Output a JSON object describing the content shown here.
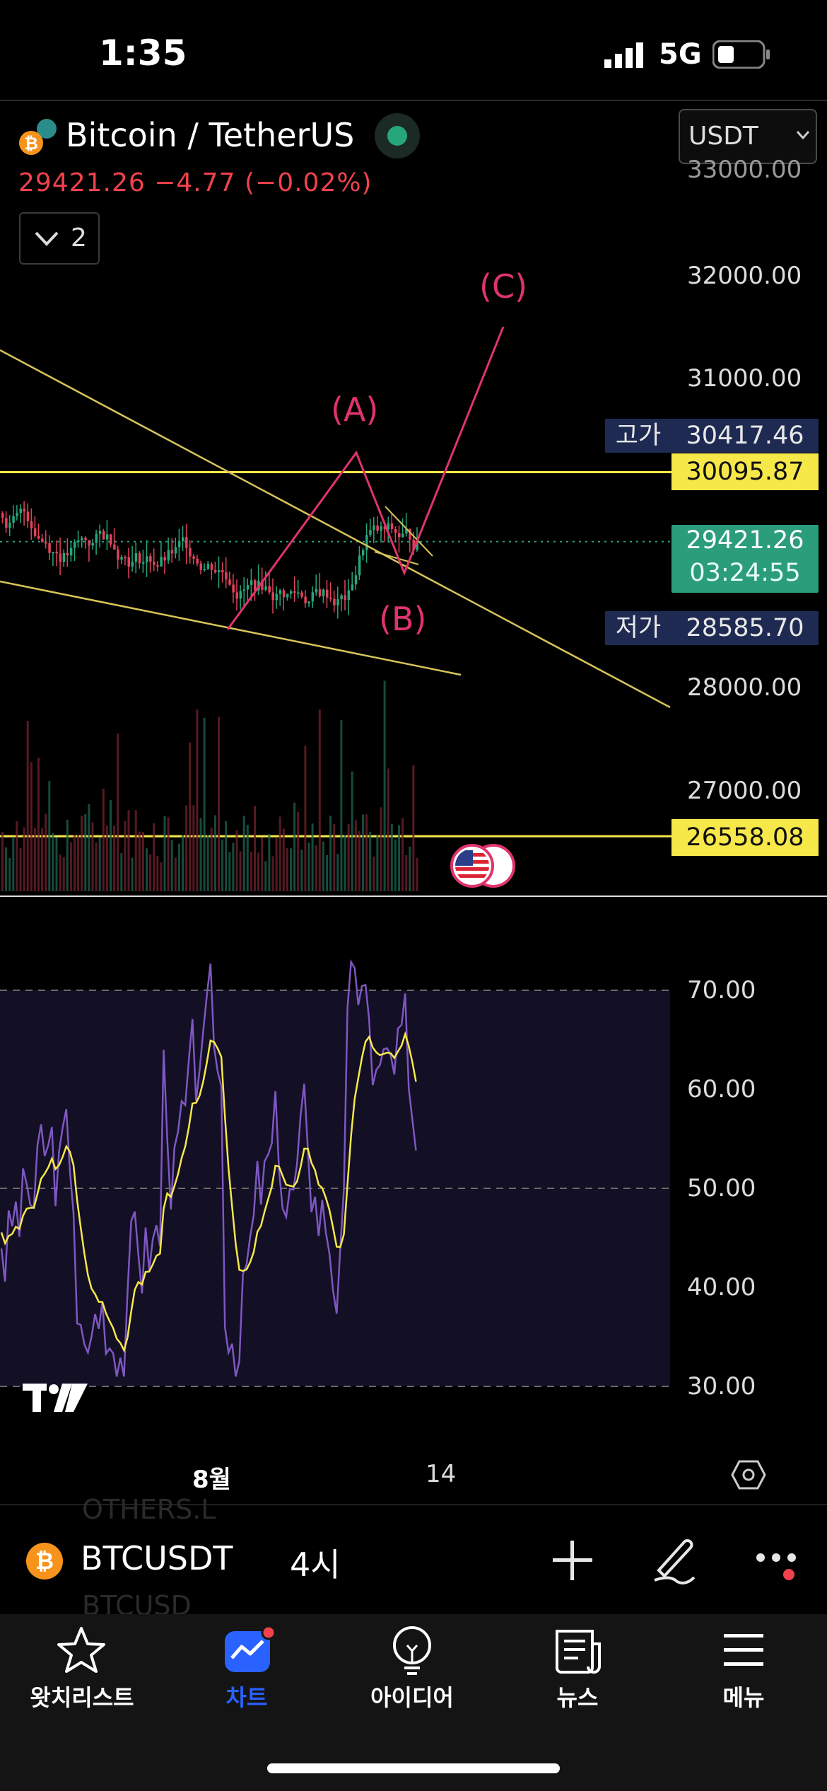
{
  "status_bar": {
    "time": "1:35",
    "network": "5G"
  },
  "header": {
    "symbol_name": "Bitcoin / TetherUS",
    "price_line": "29421.26  −4.77 (−0.02%)",
    "indicator_count": "2",
    "currency": "USDT"
  },
  "price_axis": {
    "labels": [
      "33000.00",
      "32000.00",
      "31000.00",
      "28000.00",
      "27000.00"
    ],
    "high_label": "고가",
    "high_value": "30417.46",
    "level_1": "30095.87",
    "current_price": "29421.26",
    "countdown": "03:24:55",
    "low_label": "저가",
    "low_value": "28585.70",
    "level_2": "26558.08"
  },
  "wave_labels": {
    "a": "(A)",
    "b": "(B)",
    "c": "(C)"
  },
  "rsi_axis": {
    "labels": [
      "70.00",
      "60.00",
      "50.00",
      "40.00",
      "30.00"
    ]
  },
  "time_axis": {
    "labels": [
      "8월",
      "14"
    ]
  },
  "toolbar": {
    "symbol": "BTCUSDT",
    "interval": "4시",
    "faded_top": "OTHERS.L",
    "faded_bottom": "BTCUSD"
  },
  "tabs": [
    {
      "label": "왓치리스트",
      "icon": "star-icon"
    },
    {
      "label": "차트",
      "icon": "chart-icon"
    },
    {
      "label": "아이디어",
      "icon": "lightbulb-icon"
    },
    {
      "label": "뉴스",
      "icon": "news-icon"
    },
    {
      "label": "메뉴",
      "icon": "menu-icon"
    }
  ],
  "colors": {
    "accent_blue": "#2962ff",
    "price_red": "#f0424c",
    "level_yellow": "#f7e84a",
    "green_price": "#2b9d7a",
    "wave_pink": "#e0336d",
    "rsi_purple": "#7e57c2",
    "trend_yellow": "#d8c45a"
  }
}
